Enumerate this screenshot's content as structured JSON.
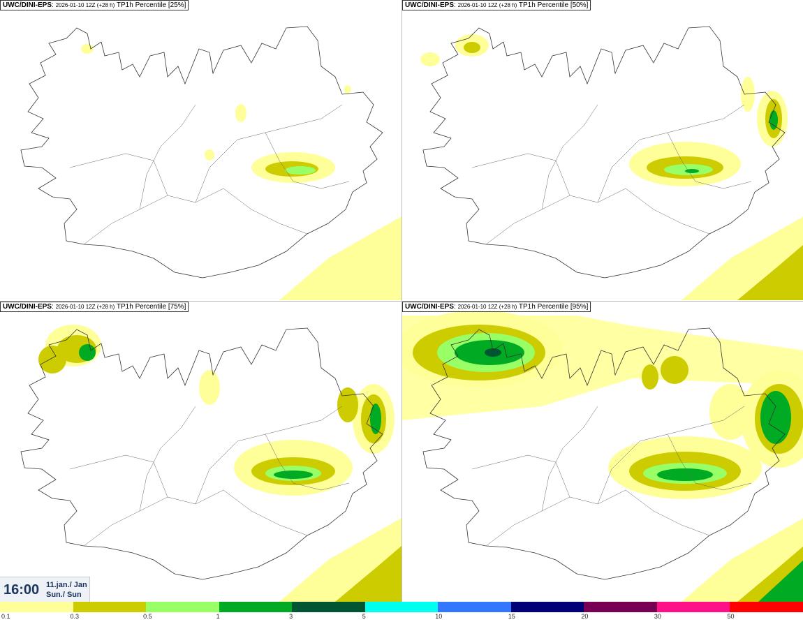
{
  "panels": [
    {
      "model": "UWC/DINI-EPS",
      "run": "2026-01-10 12Z (+28 h)",
      "product": "TP1h Percentile [25%]"
    },
    {
      "model": "UWC/DINI-EPS",
      "run": "2026-01-10 12Z (+28 h)",
      "product": "TP1h Percentile [50%]"
    },
    {
      "model": "UWC/DINI-EPS",
      "run": "2026-01-10 12Z (+28 h)",
      "product": "TP1h Percentile [75%]"
    },
    {
      "model": "UWC/DINI-EPS",
      "run": "2026-01-10 12Z (+28 h)",
      "product": "TP1h Percentile [95%]"
    }
  ],
  "valid": {
    "time": "16:00",
    "date": "11.jan./ Jan",
    "day": "Sun./ Sun"
  },
  "legend": {
    "colors": [
      "#ffff99",
      "#cccc00",
      "#99ff66",
      "#00aa22",
      "#005533",
      "#00ffee",
      "#3377ff",
      "#000077",
      "#770055",
      "#ff1188",
      "#ff0000"
    ],
    "ticks": [
      "0.1",
      "0.3",
      "0.5",
      "1",
      "3",
      "5",
      "10",
      "15",
      "20",
      "30",
      "50"
    ]
  }
}
